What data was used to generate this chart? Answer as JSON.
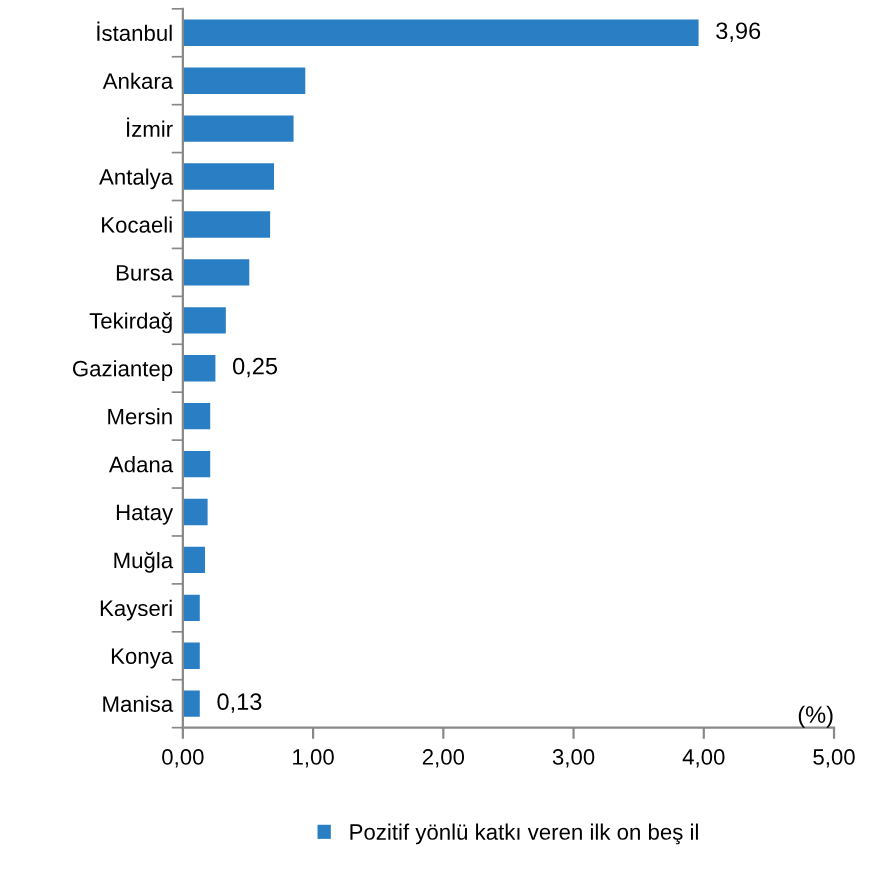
{
  "chart_data": {
    "type": "bar",
    "orientation": "horizontal",
    "categories": [
      "İstanbul",
      "Ankara",
      "İzmir",
      "Antalya",
      "Kocaeli",
      "Bursa",
      "Tekirdağ",
      "Gaziantep",
      "Mersin",
      "Adana",
      "Hatay",
      "Muğla",
      "Kayseri",
      "Konya",
      "Manisa"
    ],
    "series": [
      {
        "name": "Pozitif yönlü katkı veren ilk on beş il",
        "color": "#2a7fc4",
        "values": [
          3.96,
          0.94,
          0.85,
          0.7,
          0.67,
          0.51,
          0.33,
          0.25,
          0.21,
          0.21,
          0.19,
          0.17,
          0.13,
          0.13,
          0.13
        ],
        "value_labels": [
          "3,96",
          null,
          null,
          null,
          null,
          null,
          null,
          "0,25",
          null,
          null,
          null,
          null,
          null,
          null,
          "0,13"
        ]
      }
    ],
    "xlim": [
      0,
      5
    ],
    "xticks": [
      {
        "value": 0,
        "label": "0,00"
      },
      {
        "value": 1,
        "label": "1,00"
      },
      {
        "value": 2,
        "label": "2,00"
      },
      {
        "value": 3,
        "label": "3,00"
      },
      {
        "value": 4,
        "label": "4,00"
      },
      {
        "value": 5,
        "label": "5,00"
      }
    ],
    "annotations": [
      "(%)"
    ],
    "grid": false,
    "legend": "bottom"
  }
}
